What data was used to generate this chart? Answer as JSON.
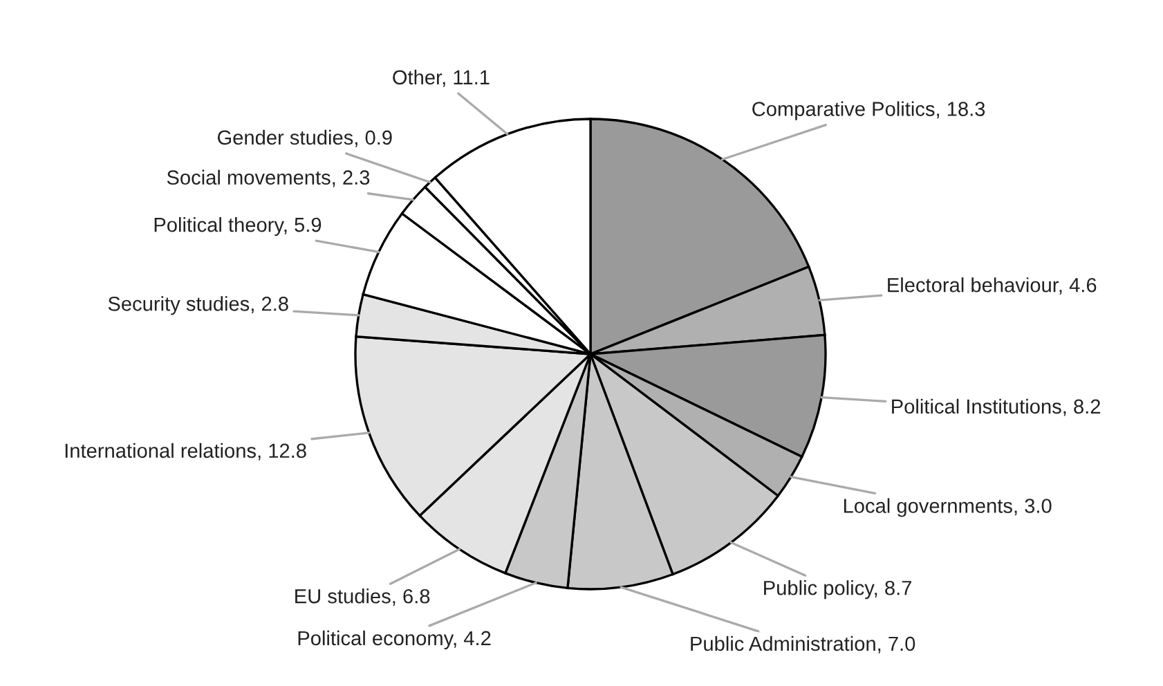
{
  "chart_data": {
    "type": "pie",
    "categories": [
      "Comparative Politics, 18.3",
      "Electoral behaviour, 4.6",
      "Political Institutions, 8.2",
      "Local governments, 3.0",
      "Public policy, 8.7",
      "Public Administration, 7.0",
      "Political economy, 4.2",
      "EU studies, 6.8",
      "International relations, 12.8",
      "Security studies, 2.8",
      "Political theory, 5.9",
      "Social movements, 2.3",
      "Gender studies, 0.9",
      "Other, 11.1"
    ],
    "values": [
      18.3,
      4.6,
      8.2,
      3.0,
      8.7,
      7.0,
      4.2,
      6.8,
      12.8,
      2.8,
      5.9,
      2.3,
      0.9,
      11.1
    ],
    "colors": [
      "#9a9a9a",
      "#b0b0b0",
      "#9a9a9a",
      "#b0b0b0",
      "#c8c8c8",
      "#c8c8c8",
      "#c8c8c8",
      "#e4e4e4",
      "#e4e4e4",
      "#e4e4e4",
      "#ffffff",
      "#ffffff",
      "#ffffff",
      "#ffffff"
    ],
    "legend": false
  }
}
